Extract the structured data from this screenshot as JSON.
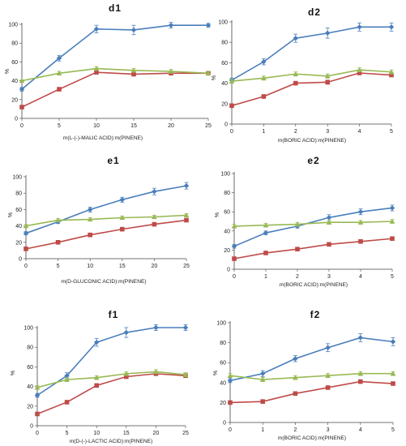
{
  "colors": {
    "blue": "#4a7ebb",
    "red": "#be4b48",
    "green": "#98b954"
  },
  "chart_data": [
    {
      "id": "d1",
      "type": "line",
      "title": "d1",
      "xlabel": "m(L-(-)-MALIC ACID):m(PINENE)",
      "ylabel": "%",
      "x": [
        0,
        5,
        10,
        15,
        20,
        25
      ],
      "xlim": [
        0,
        25
      ],
      "ylim": [
        0,
        100
      ],
      "xticks": [
        0,
        5,
        10,
        15,
        20,
        25
      ],
      "yticks": [
        0,
        20,
        40,
        60,
        80,
        100
      ],
      "series": [
        {
          "color": "blue",
          "marker": "diamond",
          "values": [
            31,
            64,
            95,
            94,
            99,
            99
          ],
          "errors": [
            2,
            3,
            4,
            5,
            3,
            2
          ]
        },
        {
          "color": "red",
          "marker": "square",
          "values": [
            12,
            31,
            49,
            47,
            48,
            48
          ],
          "errors": [
            1,
            1,
            1,
            1,
            1,
            1
          ]
        },
        {
          "color": "green",
          "marker": "triangle",
          "values": [
            40,
            48,
            53,
            51,
            50,
            48
          ],
          "errors": [
            1,
            2,
            2,
            2,
            2,
            2
          ]
        }
      ]
    },
    {
      "id": "d2",
      "type": "line",
      "title": "d2",
      "xlabel": "m(BORIC ACID):m(PINENE)",
      "ylabel": "%",
      "x": [
        0,
        1,
        2,
        3,
        4,
        5
      ],
      "xlim": [
        0,
        5
      ],
      "ylim": [
        0,
        100
      ],
      "xticks": [
        0,
        1,
        2,
        3,
        4,
        5
      ],
      "yticks": [
        0,
        20,
        40,
        60,
        80,
        100
      ],
      "series": [
        {
          "color": "blue",
          "marker": "diamond",
          "values": [
            43,
            61,
            84,
            89,
            95,
            95
          ],
          "errors": [
            2,
            3,
            4,
            5,
            4,
            4
          ]
        },
        {
          "color": "red",
          "marker": "square",
          "values": [
            18,
            27,
            40,
            41,
            50,
            48
          ],
          "errors": [
            1,
            1,
            1,
            2,
            1,
            1
          ]
        },
        {
          "color": "green",
          "marker": "triangle",
          "values": [
            42,
            45,
            49,
            47,
            53,
            51
          ],
          "errors": [
            2,
            2,
            2,
            2,
            2,
            2
          ]
        }
      ]
    },
    {
      "id": "e1",
      "type": "line",
      "title": "e1",
      "xlabel": "m(D-GLUCONIC ACID):m(PINENE)",
      "ylabel": "%",
      "x": [
        0,
        5,
        10,
        15,
        20,
        25
      ],
      "xlim": [
        0,
        25
      ],
      "ylim": [
        0,
        100
      ],
      "xticks": [
        0,
        5,
        10,
        15,
        20,
        25
      ],
      "yticks": [
        0,
        20,
        40,
        60,
        80,
        100
      ],
      "series": [
        {
          "color": "blue",
          "marker": "diamond",
          "values": [
            31,
            45,
            60,
            72,
            82,
            89
          ],
          "errors": [
            2,
            2,
            3,
            3,
            4,
            4
          ]
        },
        {
          "color": "red",
          "marker": "square",
          "values": [
            12,
            20,
            29,
            36,
            42,
            47
          ],
          "errors": [
            1,
            1,
            1,
            1,
            1,
            1
          ]
        },
        {
          "color": "green",
          "marker": "triangle",
          "values": [
            40,
            47,
            48,
            50,
            51,
            53
          ],
          "errors": [
            2,
            2,
            2,
            2,
            2,
            2
          ]
        }
      ]
    },
    {
      "id": "e2",
      "type": "line",
      "title": "e2",
      "xlabel": "m(BORIC ACID):m(PINENE)",
      "ylabel": "%",
      "x": [
        0,
        1,
        2,
        3,
        4,
        5
      ],
      "xlim": [
        0,
        5
      ],
      "ylim": [
        0,
        100
      ],
      "xticks": [
        0,
        1,
        2,
        3,
        4,
        5
      ],
      "yticks": [
        0,
        20,
        40,
        60,
        80,
        100
      ],
      "series": [
        {
          "color": "blue",
          "marker": "diamond",
          "values": [
            24,
            38,
            45,
            54,
            60,
            64
          ],
          "errors": [
            2,
            2,
            2,
            3,
            3,
            3
          ]
        },
        {
          "color": "red",
          "marker": "square",
          "values": [
            11,
            17,
            21,
            26,
            29,
            32
          ],
          "errors": [
            1,
            1,
            1,
            1,
            1,
            1
          ]
        },
        {
          "color": "green",
          "marker": "triangle",
          "values": [
            45,
            46,
            47,
            49,
            49,
            50
          ],
          "errors": [
            2,
            2,
            2,
            2,
            2,
            2
          ]
        }
      ]
    },
    {
      "id": "f1",
      "type": "line",
      "title": "f1",
      "xlabel": "m(D-(-)-LACTIC ACID):m(PINENE)",
      "ylabel": "%",
      "x": [
        0,
        5,
        10,
        15,
        20,
        25
      ],
      "xlim": [
        0,
        25
      ],
      "ylim": [
        0,
        100
      ],
      "xticks": [
        0,
        5,
        10,
        15,
        20,
        25
      ],
      "yticks": [
        0,
        20,
        40,
        60,
        80,
        100
      ],
      "series": [
        {
          "color": "blue",
          "marker": "diamond",
          "values": [
            31,
            51,
            85,
            95,
            100,
            100
          ],
          "errors": [
            2,
            3,
            4,
            5,
            3,
            3
          ]
        },
        {
          "color": "red",
          "marker": "square",
          "values": [
            12,
            24,
            41,
            50,
            53,
            51
          ],
          "errors": [
            1,
            1,
            1,
            1,
            1,
            1
          ]
        },
        {
          "color": "green",
          "marker": "triangle",
          "values": [
            39,
            47,
            49,
            53,
            55,
            52
          ],
          "errors": [
            2,
            2,
            2,
            2,
            2,
            2
          ]
        }
      ]
    },
    {
      "id": "f2",
      "type": "line",
      "title": "f2",
      "xlabel": "m(BORIC ACID):m(PINENE)",
      "ylabel": "%",
      "x": [
        0,
        1,
        2,
        3,
        4,
        5
      ],
      "xlim": [
        0,
        5
      ],
      "ylim": [
        0,
        100
      ],
      "xticks": [
        0,
        1,
        2,
        3,
        4,
        5
      ],
      "yticks": [
        0,
        20,
        40,
        60,
        80,
        100
      ],
      "series": [
        {
          "color": "blue",
          "marker": "diamond",
          "values": [
            42,
            49,
            64,
            75,
            85,
            81
          ],
          "errors": [
            2,
            3,
            3,
            4,
            4,
            4
          ]
        },
        {
          "color": "red",
          "marker": "square",
          "values": [
            20,
            21,
            29,
            35,
            41,
            39
          ],
          "errors": [
            1,
            1,
            1,
            1,
            1,
            1
          ]
        },
        {
          "color": "green",
          "marker": "triangle",
          "values": [
            47,
            43,
            45,
            47,
            49,
            49
          ],
          "errors": [
            2,
            2,
            2,
            2,
            2,
            2
          ]
        }
      ]
    }
  ]
}
